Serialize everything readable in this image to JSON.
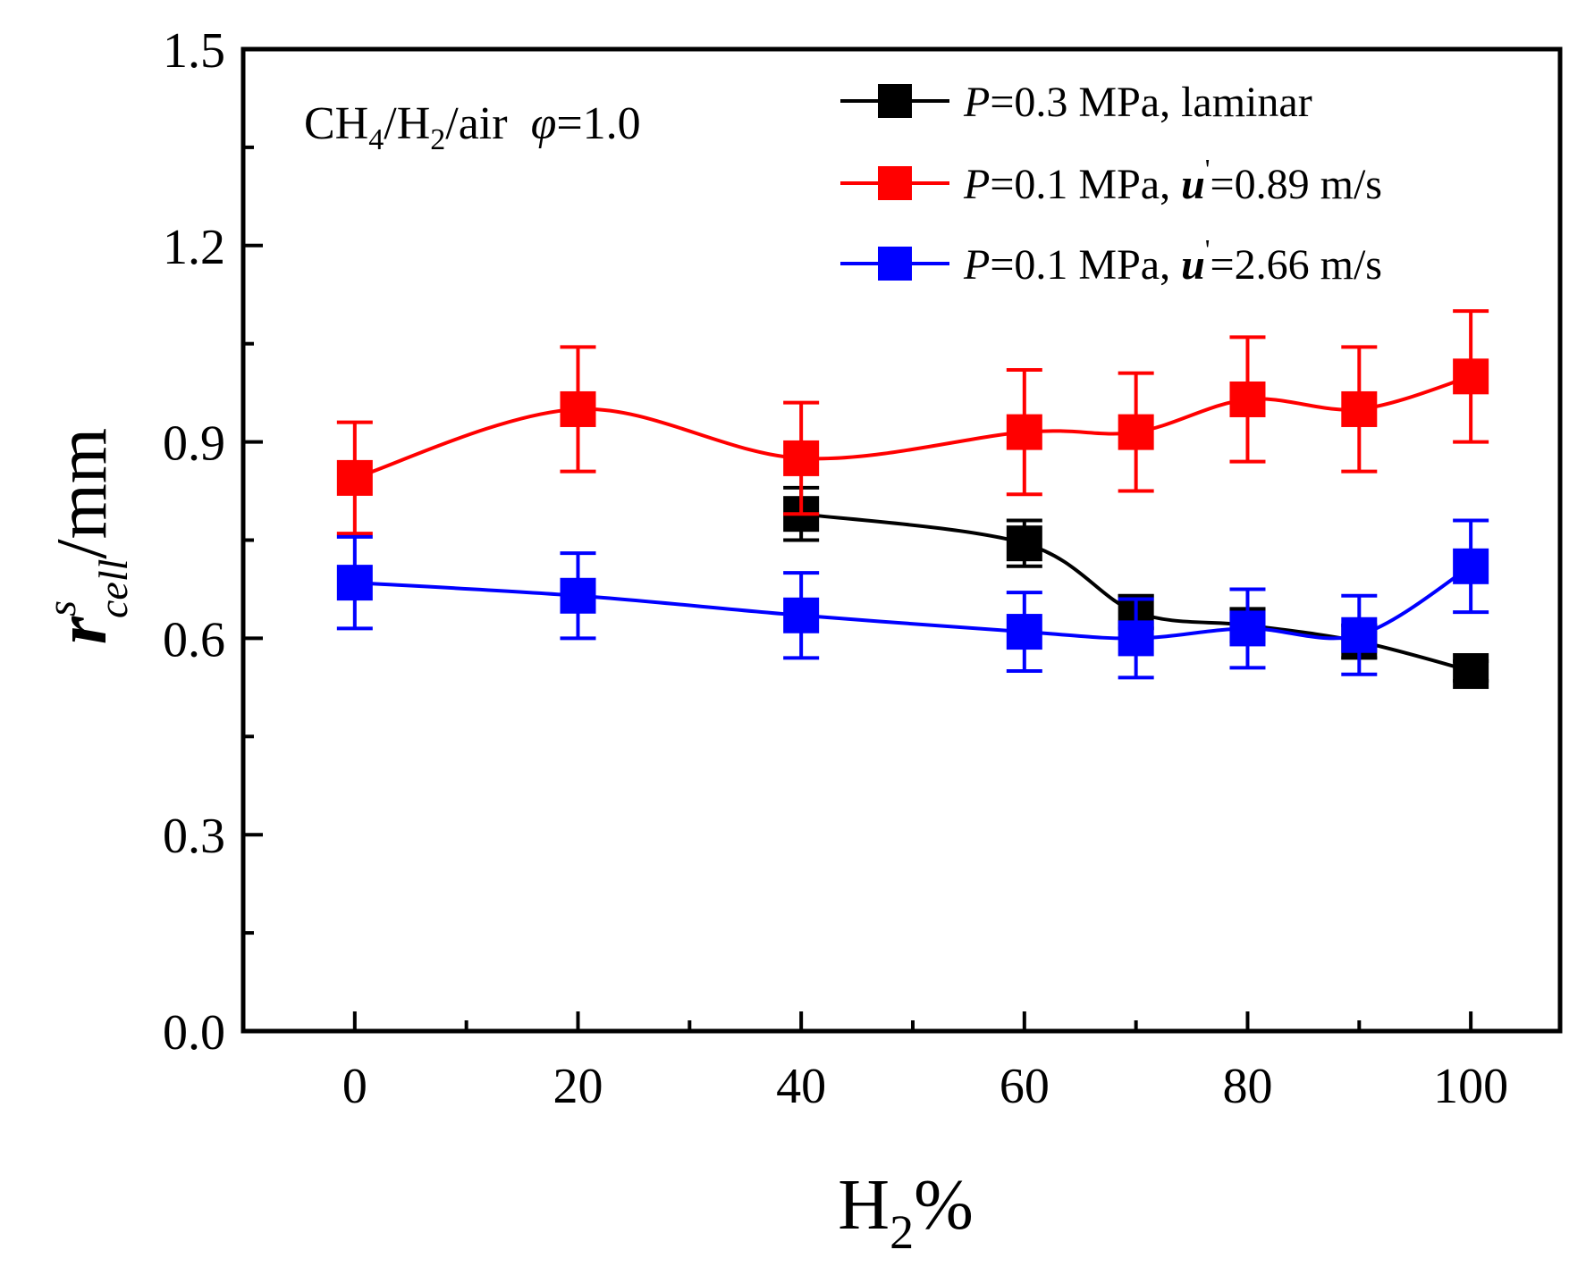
{
  "chart_data": {
    "type": "line",
    "title": "",
    "annotation": {
      "species_a": "CH",
      "sub_a": "4",
      "sep": "/",
      "species_b": "H",
      "sub_b": "2",
      "rest": "/air",
      "phi_symbol": "φ",
      "phi_value": "=1.0"
    },
    "xlabel": {
      "main": "H",
      "sub": "2",
      "suffix": "%"
    },
    "ylabel": {
      "main": "r",
      "sup": "s",
      "sub": "cell",
      "suffix": "/mm"
    },
    "xlim": [
      -10,
      108
    ],
    "ylim": [
      0.0,
      1.5
    ],
    "x_ticks": [
      0,
      20,
      40,
      60,
      80,
      100
    ],
    "x_tick_labels": [
      "0",
      "20",
      "40",
      "60",
      "80",
      "100"
    ],
    "y_ticks": [
      0.0,
      0.3,
      0.6,
      0.9,
      1.2,
      1.5
    ],
    "y_tick_labels": [
      "0.0",
      "0.3",
      "0.6",
      "0.9",
      "1.2",
      "1.5"
    ],
    "series": [
      {
        "name": "P=0.3 MPa, laminar",
        "legend": {
          "p": "P",
          "pval": "=0.3 MPa, laminar",
          "u": "",
          "uval": ""
        },
        "color": "#000000",
        "x": [
          40,
          60,
          70,
          80,
          90,
          100
        ],
        "y": [
          0.79,
          0.745,
          0.64,
          0.62,
          0.595,
          0.55
        ],
        "err": [
          0.04,
          0.035,
          0.025,
          0.025,
          0.025,
          0.015
        ]
      },
      {
        "name": "P=0.1 MPa, u'=0.89 m/s",
        "legend": {
          "p": "P",
          "pval": "=0.1 MPa, ",
          "u": "u",
          "uval": "=0.89 m/s"
        },
        "color": "#ff0000",
        "x": [
          0,
          20,
          40,
          60,
          70,
          80,
          90,
          100
        ],
        "y": [
          0.845,
          0.95,
          0.875,
          0.915,
          0.915,
          0.965,
          0.95,
          1.0
        ],
        "err": [
          0.085,
          0.095,
          0.085,
          0.095,
          0.09,
          0.095,
          0.095,
          0.1
        ]
      },
      {
        "name": "P=0.1 MPa, u'=2.66 m/s",
        "legend": {
          "p": "P",
          "pval": "=0.1 MPa, ",
          "u": "u",
          "uval": "=2.66 m/s"
        },
        "color": "#0000ff",
        "x": [
          0,
          20,
          40,
          60,
          70,
          80,
          90,
          100
        ],
        "y": [
          0.685,
          0.665,
          0.635,
          0.61,
          0.6,
          0.615,
          0.605,
          0.71
        ],
        "err": [
          0.07,
          0.065,
          0.065,
          0.06,
          0.06,
          0.06,
          0.06,
          0.07
        ]
      }
    ],
    "legend_position": "top-right",
    "grid": false
  }
}
